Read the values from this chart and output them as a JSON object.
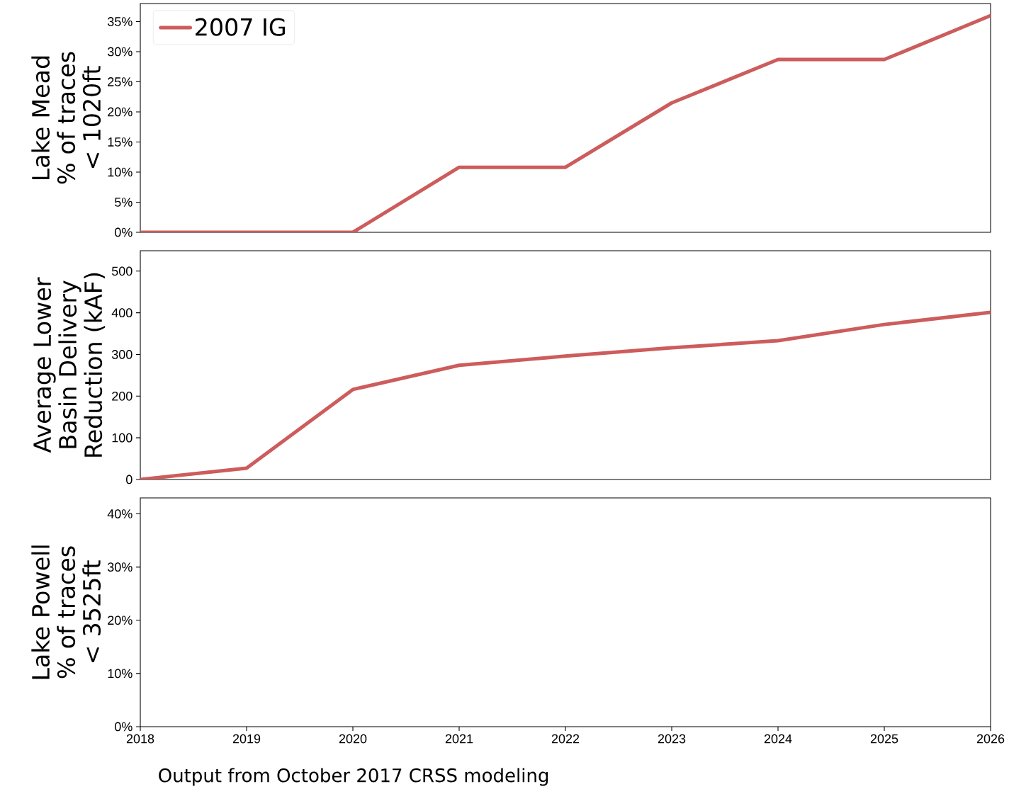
{
  "chart_data": [
    {
      "type": "line",
      "x": [
        2018,
        2019,
        2020,
        2021,
        2022,
        2023,
        2024,
        2025,
        2026
      ],
      "xlim": [
        2018,
        2026
      ],
      "xticks": [
        2018,
        2019,
        2020,
        2021,
        2022,
        2023,
        2024,
        2025,
        2026
      ],
      "tick_labels": "y",
      "ylabel": "Lake Mead % of traces < 1020ft",
      "ylim": [
        0,
        38
      ],
      "yticks": [
        {
          "value": 0,
          "label": "0%"
        },
        {
          "value": 5,
          "label": "5%"
        },
        {
          "value": 10,
          "label": "10%"
        },
        {
          "value": 15,
          "label": "15%"
        },
        {
          "value": 20,
          "label": "20%"
        },
        {
          "value": 25,
          "label": "25%"
        },
        {
          "value": 30,
          "label": "30%"
        },
        {
          "value": 35,
          "label": "35%"
        }
      ],
      "legend": "top left",
      "marker": "none",
      "line_style": "solid",
      "series": [
        {
          "name": "2007 IG",
          "color": "#cd5c5c",
          "values": [
            0,
            0,
            0,
            10.8,
            10.8,
            21.5,
            28.7,
            28.7,
            36.0
          ]
        }
      ]
    },
    {
      "type": "line",
      "x": [
        2018,
        2019,
        2020,
        2021,
        2022,
        2023,
        2024,
        2025,
        2026
      ],
      "xlim": [
        2018,
        2026
      ],
      "xticks": [
        2018,
        2019,
        2020,
        2021,
        2022,
        2023,
        2024,
        2025,
        2026
      ],
      "tick_labels": "y",
      "ylabel": "Average Lower Basin Delivery Reduction (kAF)",
      "ylim": [
        0,
        549
      ],
      "yticks": [
        0,
        100,
        200,
        300,
        400,
        500
      ],
      "marker": "none",
      "line_style": "solid",
      "series": [
        {
          "color": "#cd5c5c",
          "values": [
            0,
            27,
            216,
            274,
            296,
            316,
            333,
            372,
            401
          ]
        }
      ]
    },
    {
      "type": "line",
      "xlim": [
        2018,
        2026
      ],
      "xticks": [
        2018,
        2019,
        2020,
        2021,
        2022,
        2023,
        2024,
        2025,
        2026
      ],
      "ylabel": "Lake Powell % of traces < 3525ft",
      "ylim": [
        0,
        43
      ],
      "yticks": [
        {
          "value": 0,
          "label": "0%"
        },
        {
          "value": 10,
          "label": "10%"
        },
        {
          "value": 20,
          "label": "20%"
        },
        {
          "value": 30,
          "label": "30%"
        },
        {
          "value": 40,
          "label": "40%"
        }
      ],
      "annotations": [
        "Output from October 2017 CRSS modeling"
      ]
    }
  ]
}
